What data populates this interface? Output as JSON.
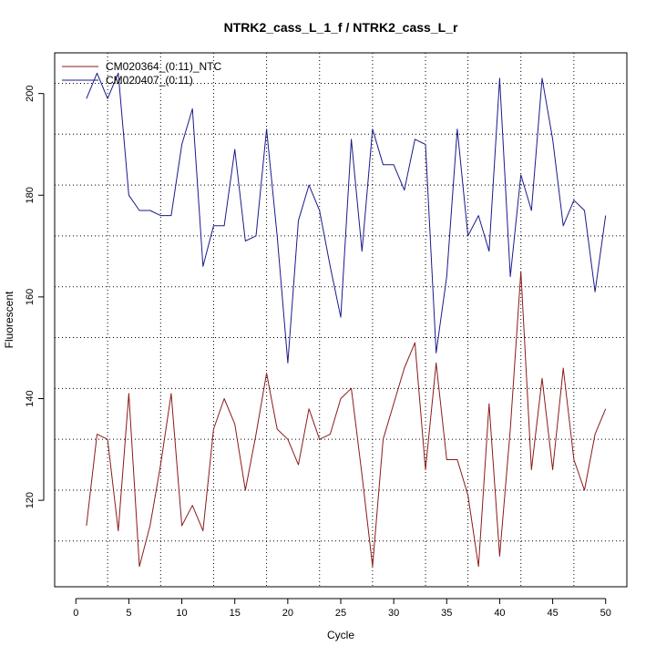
{
  "chart_data": {
    "type": "line",
    "title": "NTRK2_cass_L_1_f / NTRK2_cass_L_r",
    "xlabel": "Cycle",
    "ylabel": "Fluorescent",
    "xlim": [
      -2,
      52
    ],
    "ylim": [
      103,
      208
    ],
    "x_ticks": [
      0,
      5,
      10,
      15,
      20,
      25,
      30,
      35,
      40,
      45,
      50
    ],
    "y_ticks": [
      120,
      140,
      160,
      180,
      200
    ],
    "h_grid": [
      112,
      122,
      132,
      142,
      152,
      162,
      172,
      182,
      192,
      202
    ],
    "v_grid": [
      3,
      8,
      13,
      18,
      23,
      28,
      33,
      37,
      42,
      47
    ],
    "grid": true,
    "legend_position": "top-left",
    "x": [
      1,
      2,
      3,
      4,
      5,
      6,
      7,
      8,
      9,
      10,
      11,
      12,
      13,
      14,
      15,
      16,
      17,
      18,
      19,
      20,
      21,
      22,
      23,
      24,
      25,
      26,
      27,
      28,
      29,
      30,
      31,
      32,
      33,
      34,
      35,
      36,
      37,
      38,
      39,
      40,
      41,
      42,
      43,
      44,
      45,
      46,
      47,
      48,
      49,
      50
    ],
    "series": [
      {
        "name": "CM020364_(0:11)_NTC",
        "color": "#8b1a1a",
        "values": [
          115,
          133,
          132,
          114,
          141,
          107,
          115,
          127,
          141,
          115,
          119,
          114,
          134,
          140,
          135,
          122,
          133,
          145,
          134,
          132,
          127,
          138,
          132,
          133,
          140,
          142,
          125,
          107,
          132,
          139,
          146,
          151,
          126,
          147,
          128,
          128,
          121,
          107,
          139,
          109,
          134,
          165,
          126,
          144,
          126,
          146,
          128,
          122,
          133,
          138
        ]
      },
      {
        "name": "CM020407_(0:11)",
        "color": "#1a1a8b",
        "values": [
          199,
          204,
          199,
          204,
          180,
          177,
          177,
          176,
          176,
          190,
          197,
          166,
          174,
          174,
          189,
          171,
          172,
          193,
          172,
          147,
          175,
          182,
          177,
          166,
          156,
          191,
          169,
          193,
          186,
          186,
          181,
          191,
          190,
          149,
          164,
          193,
          172,
          176,
          169,
          203,
          164,
          184,
          177,
          203,
          191,
          174,
          179,
          177,
          161,
          176
        ]
      }
    ]
  }
}
